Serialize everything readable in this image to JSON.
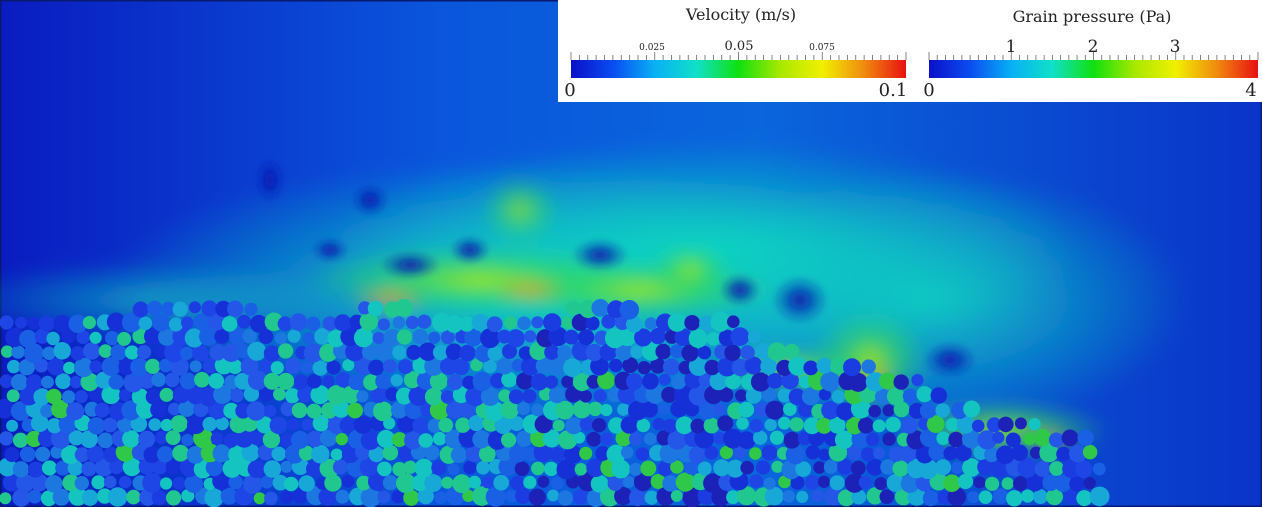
{
  "colormap": [
    "#0a10c8",
    "#0a4cf0",
    "#08b0f4",
    "#10e0c8",
    "#10e010",
    "#a8e800",
    "#f0f000",
    "#f08a10",
    "#e81010"
  ],
  "velocity_legend": {
    "title": "Velocity (m/s)",
    "minor_labels": [
      "0.025",
      "0.05",
      "0.075"
    ],
    "end_labels": [
      "0",
      "0.1"
    ]
  },
  "pressure_legend": {
    "title": "Grain pressure (Pa)",
    "major_labels": [
      "1",
      "2",
      "3"
    ],
    "end_labels": [
      "0",
      "4"
    ]
  }
}
